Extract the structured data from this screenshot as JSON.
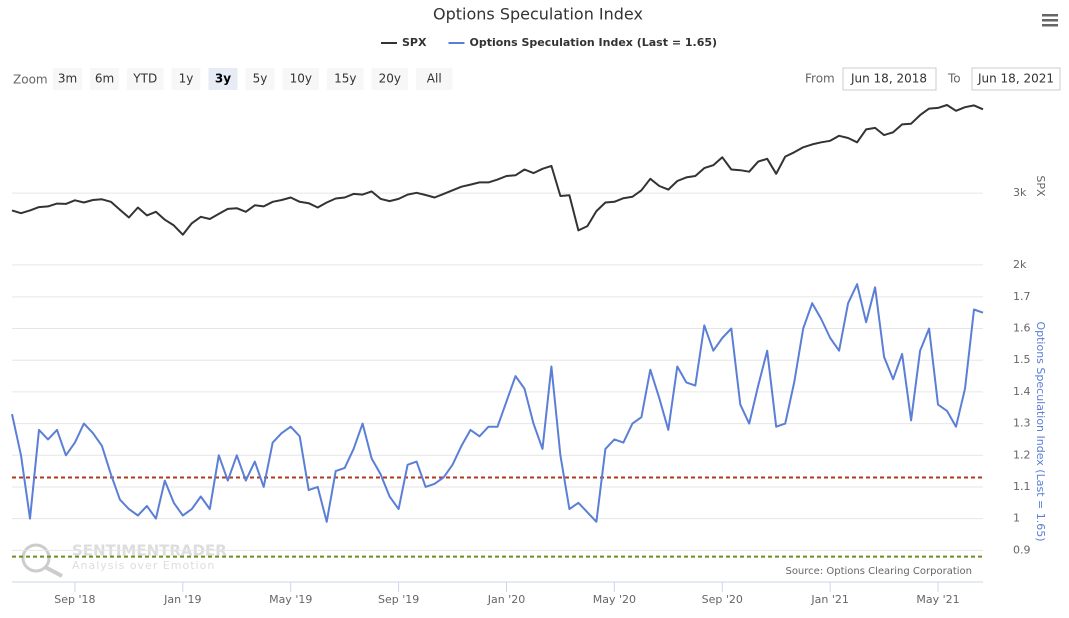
{
  "toolbar": {
    "zoom_label": "Zoom",
    "buttons": [
      "3m",
      "6m",
      "YTD",
      "1y",
      "3y",
      "5y",
      "10y",
      "15y",
      "20y",
      "All"
    ],
    "selected": "3y",
    "from_label": "From",
    "from": "Jun 18, 2018",
    "to_label": "To",
    "to": "Jun 18, 2021"
  },
  "watermark": {
    "name": "SENTIMENTRADER",
    "tagline": "Analysis over Emotion"
  },
  "chart_data": {
    "type": "line",
    "title": "Options Speculation Index",
    "source": "Source: Options Clearing Corporation",
    "categories": [
      null,
      null,
      null,
      null,
      null,
      null,
      null,
      "Sep '18",
      null,
      null,
      null,
      null,
      null,
      null,
      null,
      null,
      null,
      null,
      null,
      "Jan '19",
      null,
      null,
      null,
      null,
      null,
      null,
      null,
      null,
      null,
      null,
      null,
      "May '19",
      null,
      null,
      null,
      null,
      null,
      null,
      null,
      null,
      null,
      null,
      null,
      "Sep '19",
      null,
      null,
      null,
      null,
      null,
      null,
      null,
      null,
      null,
      null,
      null,
      "Jan '20",
      null,
      null,
      null,
      null,
      null,
      null,
      null,
      null,
      null,
      null,
      null,
      "May '20",
      null,
      null,
      null,
      null,
      null,
      null,
      null,
      null,
      null,
      null,
      null,
      "Sep '20",
      null,
      null,
      null,
      null,
      null,
      null,
      null,
      null,
      null,
      null,
      null,
      "Jan '21",
      null,
      null,
      null,
      null,
      null,
      null,
      null,
      null,
      null,
      null,
      null,
      "May '21",
      null,
      null,
      null,
      null,
      null
    ],
    "series": [
      {
        "name": "SPX",
        "color": "#333333",
        "axis": "y",
        "values": [
          2760,
          2720,
          2760,
          2805,
          2815,
          2855,
          2850,
          2900,
          2870,
          2905,
          2915,
          2880,
          2770,
          2660,
          2800,
          2690,
          2740,
          2630,
          2550,
          2420,
          2580,
          2670,
          2640,
          2710,
          2780,
          2790,
          2740,
          2830,
          2815,
          2880,
          2905,
          2940,
          2880,
          2860,
          2800,
          2870,
          2925,
          2940,
          2990,
          2980,
          3025,
          2920,
          2890,
          2920,
          2980,
          3005,
          2975,
          2940,
          2990,
          3040,
          3090,
          3120,
          3150,
          3150,
          3190,
          3240,
          3250,
          3330,
          3280,
          3340,
          3380,
          2960,
          2970,
          2480,
          2540,
          2750,
          2870,
          2880,
          2930,
          2950,
          3040,
          3200,
          3100,
          3050,
          3170,
          3220,
          3240,
          3350,
          3390,
          3500,
          3330,
          3320,
          3300,
          3440,
          3480,
          3270,
          3510,
          3570,
          3640,
          3680,
          3710,
          3730,
          3800,
          3770,
          3710,
          3890,
          3910,
          3810,
          3850,
          3960,
          3970,
          4090,
          4180,
          4190,
          4230,
          4150,
          4200,
          4225,
          4170
        ]
      },
      {
        "name": "Options Speculation Index (Last = 1.65)",
        "color": "#5b7fd6",
        "axis": "y2",
        "values": [
          1.33,
          1.2,
          1.0,
          1.28,
          1.25,
          1.28,
          1.2,
          1.24,
          1.3,
          1.27,
          1.23,
          1.14,
          1.06,
          1.03,
          1.01,
          1.04,
          1.0,
          1.12,
          1.05,
          1.01,
          1.03,
          1.07,
          1.03,
          1.2,
          1.12,
          1.2,
          1.12,
          1.18,
          1.1,
          1.24,
          1.27,
          1.29,
          1.26,
          1.09,
          1.1,
          0.99,
          1.15,
          1.16,
          1.22,
          1.3,
          1.19,
          1.14,
          1.07,
          1.03,
          1.17,
          1.18,
          1.1,
          1.11,
          1.13,
          1.17,
          1.23,
          1.28,
          1.26,
          1.29,
          1.29,
          1.37,
          1.45,
          1.41,
          1.3,
          1.22,
          1.48,
          1.2,
          1.03,
          1.05,
          1.02,
          0.99,
          1.22,
          1.25,
          1.24,
          1.3,
          1.32,
          1.47,
          1.38,
          1.28,
          1.48,
          1.43,
          1.42,
          1.61,
          1.53,
          1.57,
          1.6,
          1.36,
          1.3,
          1.42,
          1.53,
          1.29,
          1.3,
          1.43,
          1.6,
          1.68,
          1.63,
          1.57,
          1.53,
          1.68,
          1.74,
          1.62,
          1.73,
          1.51,
          1.44,
          1.52,
          1.31,
          1.53,
          1.6,
          1.36,
          1.34,
          1.29,
          1.41,
          1.66,
          1.65
        ]
      }
    ],
    "ylim": [
      1900,
      4300
    ],
    "yticks": [
      {
        "value": 2000,
        "label": "2k"
      },
      {
        "value": 3000,
        "label": "3k"
      }
    ],
    "y2lim": [
      0.8,
      1.75
    ],
    "y2ticks": [
      0.9,
      1,
      1.1,
      1.2,
      1.3,
      1.4,
      1.5,
      1.6,
      1.7
    ],
    "reference_lines": [
      {
        "value": 1.13,
        "color": "#b03a1e",
        "axis": "y2"
      },
      {
        "value": 0.88,
        "color": "#6b8e23",
        "axis": "y2"
      }
    ],
    "grid": true
  }
}
